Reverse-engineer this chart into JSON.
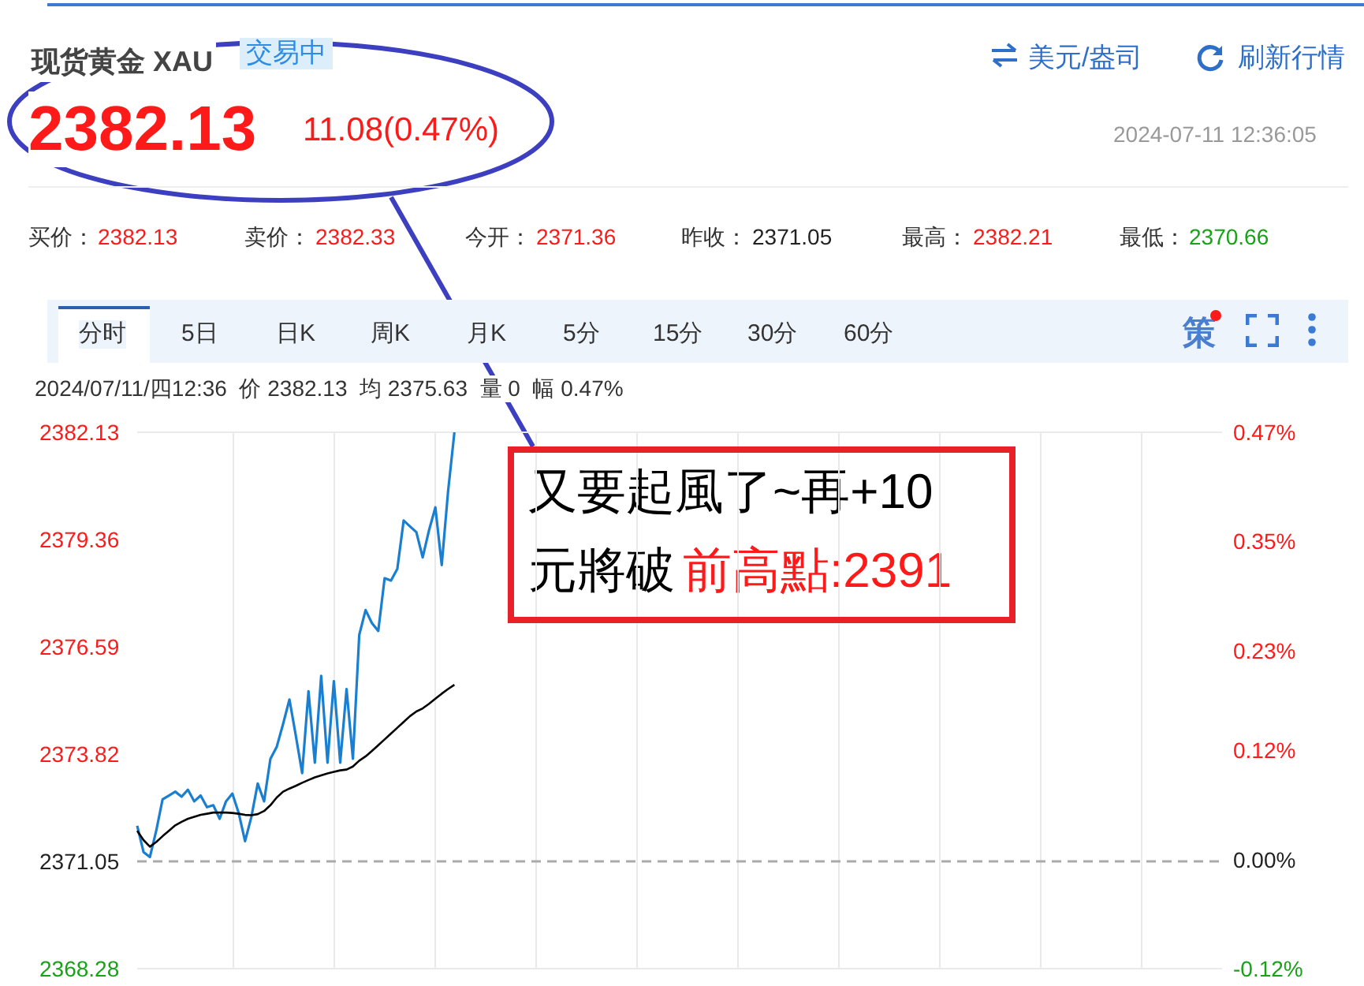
{
  "chart_data": {
    "type": "line",
    "title": "现货黄金 XAU",
    "annotations": [
      "交易中",
      "2382.13",
      "11.08(0.47%)",
      "美元/盎司",
      "刷新行情",
      "2024-07-11 12:36:05",
      "买价：",
      "2382.13",
      "卖价：",
      "2382.33",
      "今开：",
      "2371.36",
      "昨收：",
      "2371.05",
      "最高：",
      "2382.21",
      "最低：",
      "2370.66",
      "分时",
      "5日",
      "日K",
      "周K",
      "月K",
      "5分",
      "15分",
      "30分",
      "60分",
      "策",
      "2024/07/11/四12:36  价 2382.13  均 2375.63  量 0  幅 0.47%",
      "又要起風了~再+10",
      "元將破",
      "前高點:2391"
    ],
    "categories": [
      null,
      null,
      null,
      null,
      null,
      null,
      null,
      null,
      null,
      null,
      null,
      null,
      null,
      null,
      null,
      null,
      null,
      null,
      null,
      null,
      null,
      null,
      null,
      null,
      null,
      null,
      null,
      null,
      null,
      null,
      null,
      null,
      null,
      null,
      null,
      null,
      null,
      null,
      null,
      null,
      null,
      null,
      null,
      null,
      null,
      null,
      null,
      null,
      null,
      null,
      null,
      null,
      null,
      null,
      null,
      null,
      null,
      null,
      null,
      null,
      null,
      null,
      null,
      null,
      null,
      null,
      null,
      null,
      null,
      null,
      null,
      null,
      null,
      null,
      null,
      null,
      null,
      null,
      null,
      null,
      null,
      null,
      null,
      null,
      null,
      null,
      null,
      null,
      null,
      null,
      null,
      null,
      null,
      null,
      null,
      null,
      null,
      null,
      null,
      null,
      null,
      null,
      null,
      null,
      null,
      null,
      null,
      null,
      null,
      null,
      null,
      null,
      null,
      null,
      null,
      null,
      null,
      null,
      null,
      null,
      null,
      null,
      null,
      null,
      null,
      null,
      null,
      null,
      null,
      null,
      null,
      null,
      null,
      null,
      null,
      null,
      null,
      null,
      null,
      null,
      null,
      null,
      null,
      null,
      null,
      null,
      null,
      null,
      null,
      null,
      null,
      null,
      null,
      null,
      null,
      null,
      null,
      null,
      null,
      null,
      null,
      null,
      null,
      null,
      null,
      null,
      null,
      null,
      null,
      null,
      null,
      null
    ],
    "series": [
      {
        "color": "#1a7fd0",
        "values": [
          2371.97,
          2371.29,
          2371.16,
          2371.84,
          2372.65,
          2372.75,
          2372.85,
          2372.72,
          2372.9,
          2372.6,
          2372.75,
          2372.45,
          2372.5,
          2372.15,
          2372.6,
          2372.8,
          2372.3,
          2371.57,
          2372.2,
          2373.06,
          2372.6,
          2373.7,
          2374.01,
          2374.6,
          2375.23,
          2374.3,
          2373.33,
          2375.44,
          2373.6,
          2375.84,
          2373.6,
          2375.7,
          2373.6,
          2375.5,
          2373.7,
          2376.9,
          2377.54,
          2377.2,
          2377.0,
          2378.36,
          2378.3,
          2378.6,
          2379.85,
          2379.7,
          2379.55,
          2378.9,
          2379.6,
          2380.19,
          2378.7,
          2380.6,
          2382.13,
          null,
          null,
          null,
          null,
          null,
          null,
          null,
          null,
          null,
          null,
          null,
          null,
          null,
          null,
          null,
          null,
          null,
          null,
          null,
          null,
          null,
          null,
          null,
          null,
          null,
          null,
          null,
          null,
          null,
          null,
          null,
          null,
          null,
          null,
          null,
          null,
          null,
          null,
          null,
          null,
          null,
          null,
          null,
          null,
          null,
          null,
          null,
          null,
          null,
          null,
          null,
          null,
          null,
          null,
          null,
          null,
          null,
          null,
          null,
          null,
          null,
          null,
          null,
          null,
          null,
          null,
          null,
          null,
          null,
          null,
          null,
          null,
          null,
          null,
          null,
          null,
          null,
          null,
          null,
          null,
          null,
          null,
          null,
          null,
          null,
          null,
          null,
          null,
          null,
          null,
          null,
          null,
          null,
          null,
          null,
          null,
          null,
          null,
          null,
          null,
          null,
          null,
          null,
          null,
          null,
          null,
          null,
          null,
          null,
          null,
          null,
          null,
          null,
          null,
          null,
          null,
          null,
          null,
          null,
          null,
          null
        ]
      },
      {
        "color": "#000000",
        "values": [
          2371.84,
          2371.6,
          2371.43,
          2371.55,
          2371.7,
          2371.84,
          2371.98,
          2372.07,
          2372.15,
          2372.2,
          2372.25,
          2372.28,
          2372.31,
          2372.31,
          2372.31,
          2372.3,
          2372.28,
          2372.25,
          2372.24,
          2372.27,
          2372.35,
          2372.5,
          2372.7,
          2372.85,
          2372.93,
          2373.0,
          2373.08,
          2373.15,
          2373.22,
          2373.27,
          2373.32,
          2373.36,
          2373.4,
          2373.42,
          2373.5,
          2373.65,
          2373.76,
          2373.9,
          2374.05,
          2374.2,
          2374.35,
          2374.5,
          2374.65,
          2374.8,
          2374.92,
          2375.0,
          2375.12,
          2375.25,
          2375.38,
          2375.5,
          2375.61,
          null,
          null,
          null,
          null,
          null,
          null,
          null,
          null,
          null,
          null,
          null,
          null,
          null,
          null,
          null,
          null,
          null,
          null,
          null,
          null,
          null,
          null,
          null,
          null,
          null,
          null,
          null,
          null,
          null,
          null,
          null,
          null,
          null,
          null,
          null,
          null,
          null,
          null,
          null,
          null,
          null,
          null,
          null,
          null,
          null,
          null,
          null,
          null,
          null,
          null,
          null,
          null,
          null,
          null,
          null,
          null,
          null,
          null,
          null,
          null,
          null,
          null,
          null,
          null,
          null,
          null,
          null,
          null,
          null,
          null,
          null,
          null,
          null,
          null,
          null,
          null,
          null,
          null,
          null,
          null,
          null,
          null,
          null,
          null,
          null,
          null,
          null,
          null,
          null,
          null,
          null,
          null,
          null,
          null,
          null,
          null,
          null,
          null,
          null,
          null,
          null,
          null,
          null,
          null,
          null,
          null,
          null,
          null,
          null,
          null,
          null,
          null,
          null,
          null,
          null,
          null,
          null,
          null,
          null,
          null,
          null
        ]
      }
    ],
    "ylim": [
      2368.28,
      2382.13
    ],
    "yticks": [
      2368.28,
      2371.05,
      2373.82,
      2376.59,
      2379.36,
      2382.13
    ],
    "y2lim": [
      -0.12,
      0.47
    ],
    "y2ticks": [
      {
        "value": -0.12,
        "label": "-0.12%"
      },
      {
        "value": 0,
        "label": "0.00%"
      },
      {
        "value": 0.12,
        "label": "0.12%"
      },
      {
        "value": 0.23,
        "label": "0.23%"
      },
      {
        "value": 0.35,
        "label": "0.35%"
      },
      {
        "value": 0.47,
        "label": "0.47%"
      }
    ],
    "ref_lines": [
      {
        "axis": "y",
        "value": 2371.05,
        "color": "#aaaaaa",
        "line_style": "dashed"
      }
    ],
    "grid": true,
    "marker": "none",
    "line_style": "solid",
    "tick_labels": "y"
  }
}
